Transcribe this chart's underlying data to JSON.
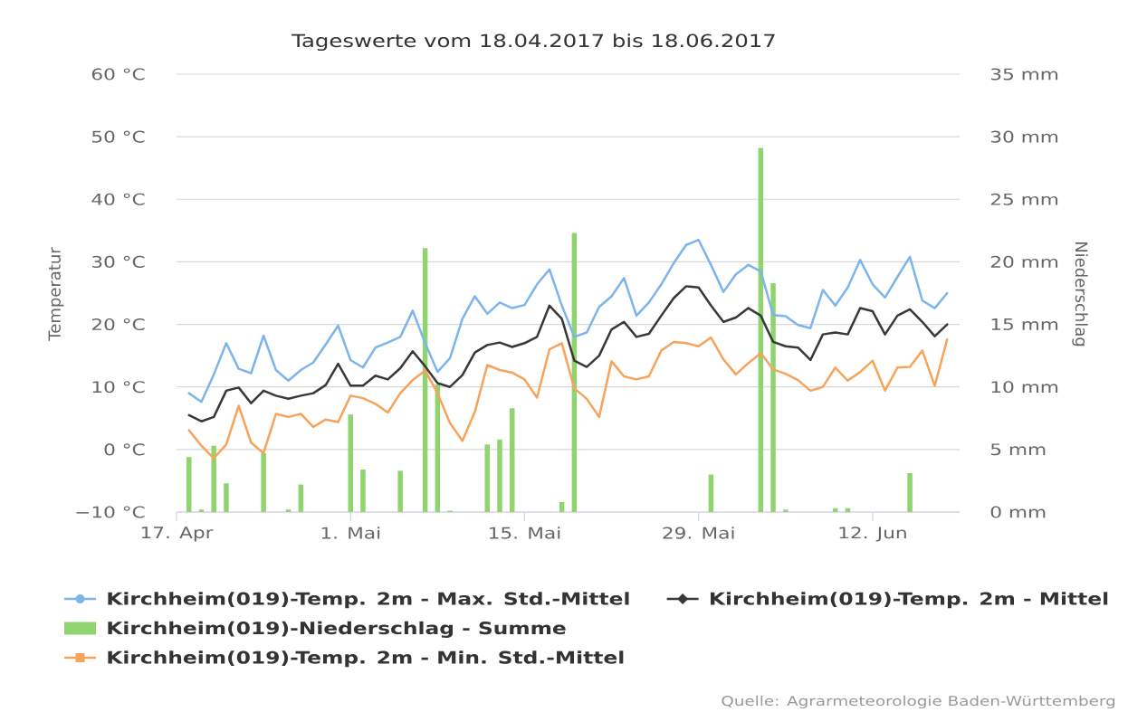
{
  "chart_data": {
    "type": "line",
    "title": "Tageswerte vom 18.04.2017 bis 18.06.2017",
    "ylabel": "Temperatur",
    "y2label": "Niederschlag",
    "annotations": [
      "Quelle: Agrarmeteorologie Baden-Württemberg"
    ],
    "x": [
      "2017-04-18",
      "2017-04-19",
      "2017-04-20",
      "2017-04-21",
      "2017-04-22",
      "2017-04-23",
      "2017-04-24",
      "2017-04-25",
      "2017-04-26",
      "2017-04-27",
      "2017-04-28",
      "2017-04-29",
      "2017-04-30",
      "2017-05-01",
      "2017-05-02",
      "2017-05-03",
      "2017-05-04",
      "2017-05-05",
      "2017-05-06",
      "2017-05-07",
      "2017-05-08",
      "2017-05-09",
      "2017-05-10",
      "2017-05-11",
      "2017-05-12",
      "2017-05-13",
      "2017-05-14",
      "2017-05-15",
      "2017-05-16",
      "2017-05-17",
      "2017-05-18",
      "2017-05-19",
      "2017-05-20",
      "2017-05-21",
      "2017-05-22",
      "2017-05-23",
      "2017-05-24",
      "2017-05-25",
      "2017-05-26",
      "2017-05-27",
      "2017-05-28",
      "2017-05-29",
      "2017-05-30",
      "2017-05-31",
      "2017-06-01",
      "2017-06-02",
      "2017-06-03",
      "2017-06-04",
      "2017-06-05",
      "2017-06-06",
      "2017-06-07",
      "2017-06-08",
      "2017-06-09",
      "2017-06-10",
      "2017-06-11",
      "2017-06-12",
      "2017-06-13",
      "2017-06-14",
      "2017-06-15",
      "2017-06-16",
      "2017-06-17",
      "2017-06-18"
    ],
    "series": [
      {
        "name": "Kirchheim(019)-Temp. 2m - Max. Std.-Mittel",
        "color": "#7cb5ec",
        "values": [
          9.0,
          7.6,
          12.0,
          17.0,
          12.9,
          12.2,
          18.2,
          12.7,
          11.0,
          12.7,
          13.9,
          16.8,
          19.8,
          14.3,
          13.1,
          16.3,
          17.1,
          18.0,
          22.2,
          17.0,
          12.4,
          14.6,
          20.9,
          24.5,
          21.7,
          23.5,
          22.6,
          23.1,
          26.4,
          28.8,
          23.0,
          18.0,
          18.7,
          22.8,
          24.5,
          27.4,
          21.4,
          23.5,
          26.4,
          29.8,
          32.7,
          33.5,
          29.5,
          25.2,
          28.0,
          29.5,
          28.5,
          21.5,
          21.3,
          19.9,
          19.4,
          25.5,
          23.0,
          25.9,
          30.3,
          26.4,
          24.3,
          27.6,
          30.8,
          23.8,
          22.6,
          25.0
        ]
      },
      {
        "name": "Kirchheim(019)-Temp. 2m - Mittel",
        "color": "#383838",
        "values": [
          5.5,
          4.5,
          5.2,
          9.4,
          9.9,
          7.4,
          9.4,
          8.6,
          8.1,
          8.6,
          9.0,
          10.3,
          13.7,
          10.2,
          10.2,
          11.8,
          11.2,
          13.0,
          15.7,
          13.3,
          10.6,
          10.0,
          11.9,
          15.5,
          16.7,
          17.1,
          16.4,
          17.0,
          18.0,
          23.0,
          20.9,
          14.2,
          13.2,
          15.0,
          19.2,
          20.4,
          18.0,
          18.5,
          21.4,
          24.2,
          26.1,
          25.9,
          23.0,
          20.4,
          21.1,
          22.6,
          21.4,
          17.2,
          16.5,
          16.3,
          14.3,
          18.4,
          18.7,
          18.4,
          22.6,
          22.1,
          18.4,
          21.4,
          22.4,
          20.4,
          18.1,
          20.0
        ]
      },
      {
        "name": "Kirchheim(019)-Niederschlag - Summe",
        "type": "bar",
        "axis": "y2",
        "color": "#90d46f",
        "values": [
          4.4,
          0.2,
          5.3,
          2.3,
          null,
          null,
          4.7,
          null,
          0.2,
          2.2,
          null,
          null,
          null,
          7.8,
          3.4,
          null,
          null,
          3.3,
          null,
          21.1,
          10.2,
          0.1,
          null,
          null,
          5.4,
          5.8,
          8.3,
          null,
          null,
          null,
          0.8,
          22.3,
          null,
          null,
          null,
          null,
          null,
          null,
          null,
          null,
          null,
          null,
          3.0,
          null,
          null,
          null,
          29.1,
          18.3,
          0.2,
          null,
          null,
          null,
          0.3,
          0.3,
          null,
          null,
          null,
          null,
          3.1,
          null,
          null,
          null
        ]
      },
      {
        "name": "Kirchheim(019)-Temp. 2m - Min. Std.-Mittel",
        "color": "#f7a35c",
        "values": [
          3.1,
          0.6,
          -1.4,
          0.8,
          7.0,
          1.1,
          -0.6,
          5.7,
          5.2,
          5.7,
          3.6,
          4.8,
          4.4,
          8.6,
          8.2,
          7.3,
          5.9,
          9.0,
          11.1,
          12.6,
          9.0,
          4.2,
          1.4,
          6.0,
          13.5,
          12.7,
          12.3,
          11.2,
          8.3,
          16.0,
          17.0,
          9.8,
          8.1,
          5.2,
          14.1,
          11.7,
          11.2,
          11.7,
          15.8,
          17.2,
          17.0,
          16.5,
          17.9,
          14.4,
          12.0,
          13.8,
          15.4,
          12.8,
          12.1,
          11.1,
          9.4,
          10.0,
          13.1,
          11.0,
          12.4,
          14.2,
          9.4,
          13.1,
          13.2,
          15.8,
          10.2,
          17.6
        ]
      }
    ],
    "xlim": [
      "2017-04-17",
      "2017-06-19"
    ],
    "xticks": [
      {
        "value": "2017-04-17",
        "label": "17. Apr"
      },
      {
        "value": "2017-05-01",
        "label": "1. Mai"
      },
      {
        "value": "2017-05-15",
        "label": "15. Mai"
      },
      {
        "value": "2017-05-29",
        "label": "29. Mai"
      },
      {
        "value": "2017-06-12",
        "label": "12. Jun"
      }
    ],
    "ylim": [
      -10,
      60
    ],
    "yticks": [
      {
        "value": -10,
        "label": "−10 °C"
      },
      {
        "value": 0,
        "label": "0 °C"
      },
      {
        "value": 10,
        "label": "10 °C"
      },
      {
        "value": 20,
        "label": "20 °C"
      },
      {
        "value": 30,
        "label": "30 °C"
      },
      {
        "value": 40,
        "label": "40 °C"
      },
      {
        "value": 50,
        "label": "50 °C"
      },
      {
        "value": 60,
        "label": "60 °C"
      }
    ],
    "y2lim": [
      0,
      35
    ],
    "y2ticks": [
      {
        "value": 0,
        "label": "0 mm"
      },
      {
        "value": 5,
        "label": "5 mm"
      },
      {
        "value": 10,
        "label": "10 mm"
      },
      {
        "value": 15,
        "label": "15 mm"
      },
      {
        "value": 20,
        "label": "20 mm"
      },
      {
        "value": 25,
        "label": "25 mm"
      },
      {
        "value": 30,
        "label": "30 mm"
      },
      {
        "value": 35,
        "label": "35 mm"
      }
    ],
    "grid": "y",
    "legend": "bottom",
    "marker": "none",
    "line_style": "solid"
  }
}
